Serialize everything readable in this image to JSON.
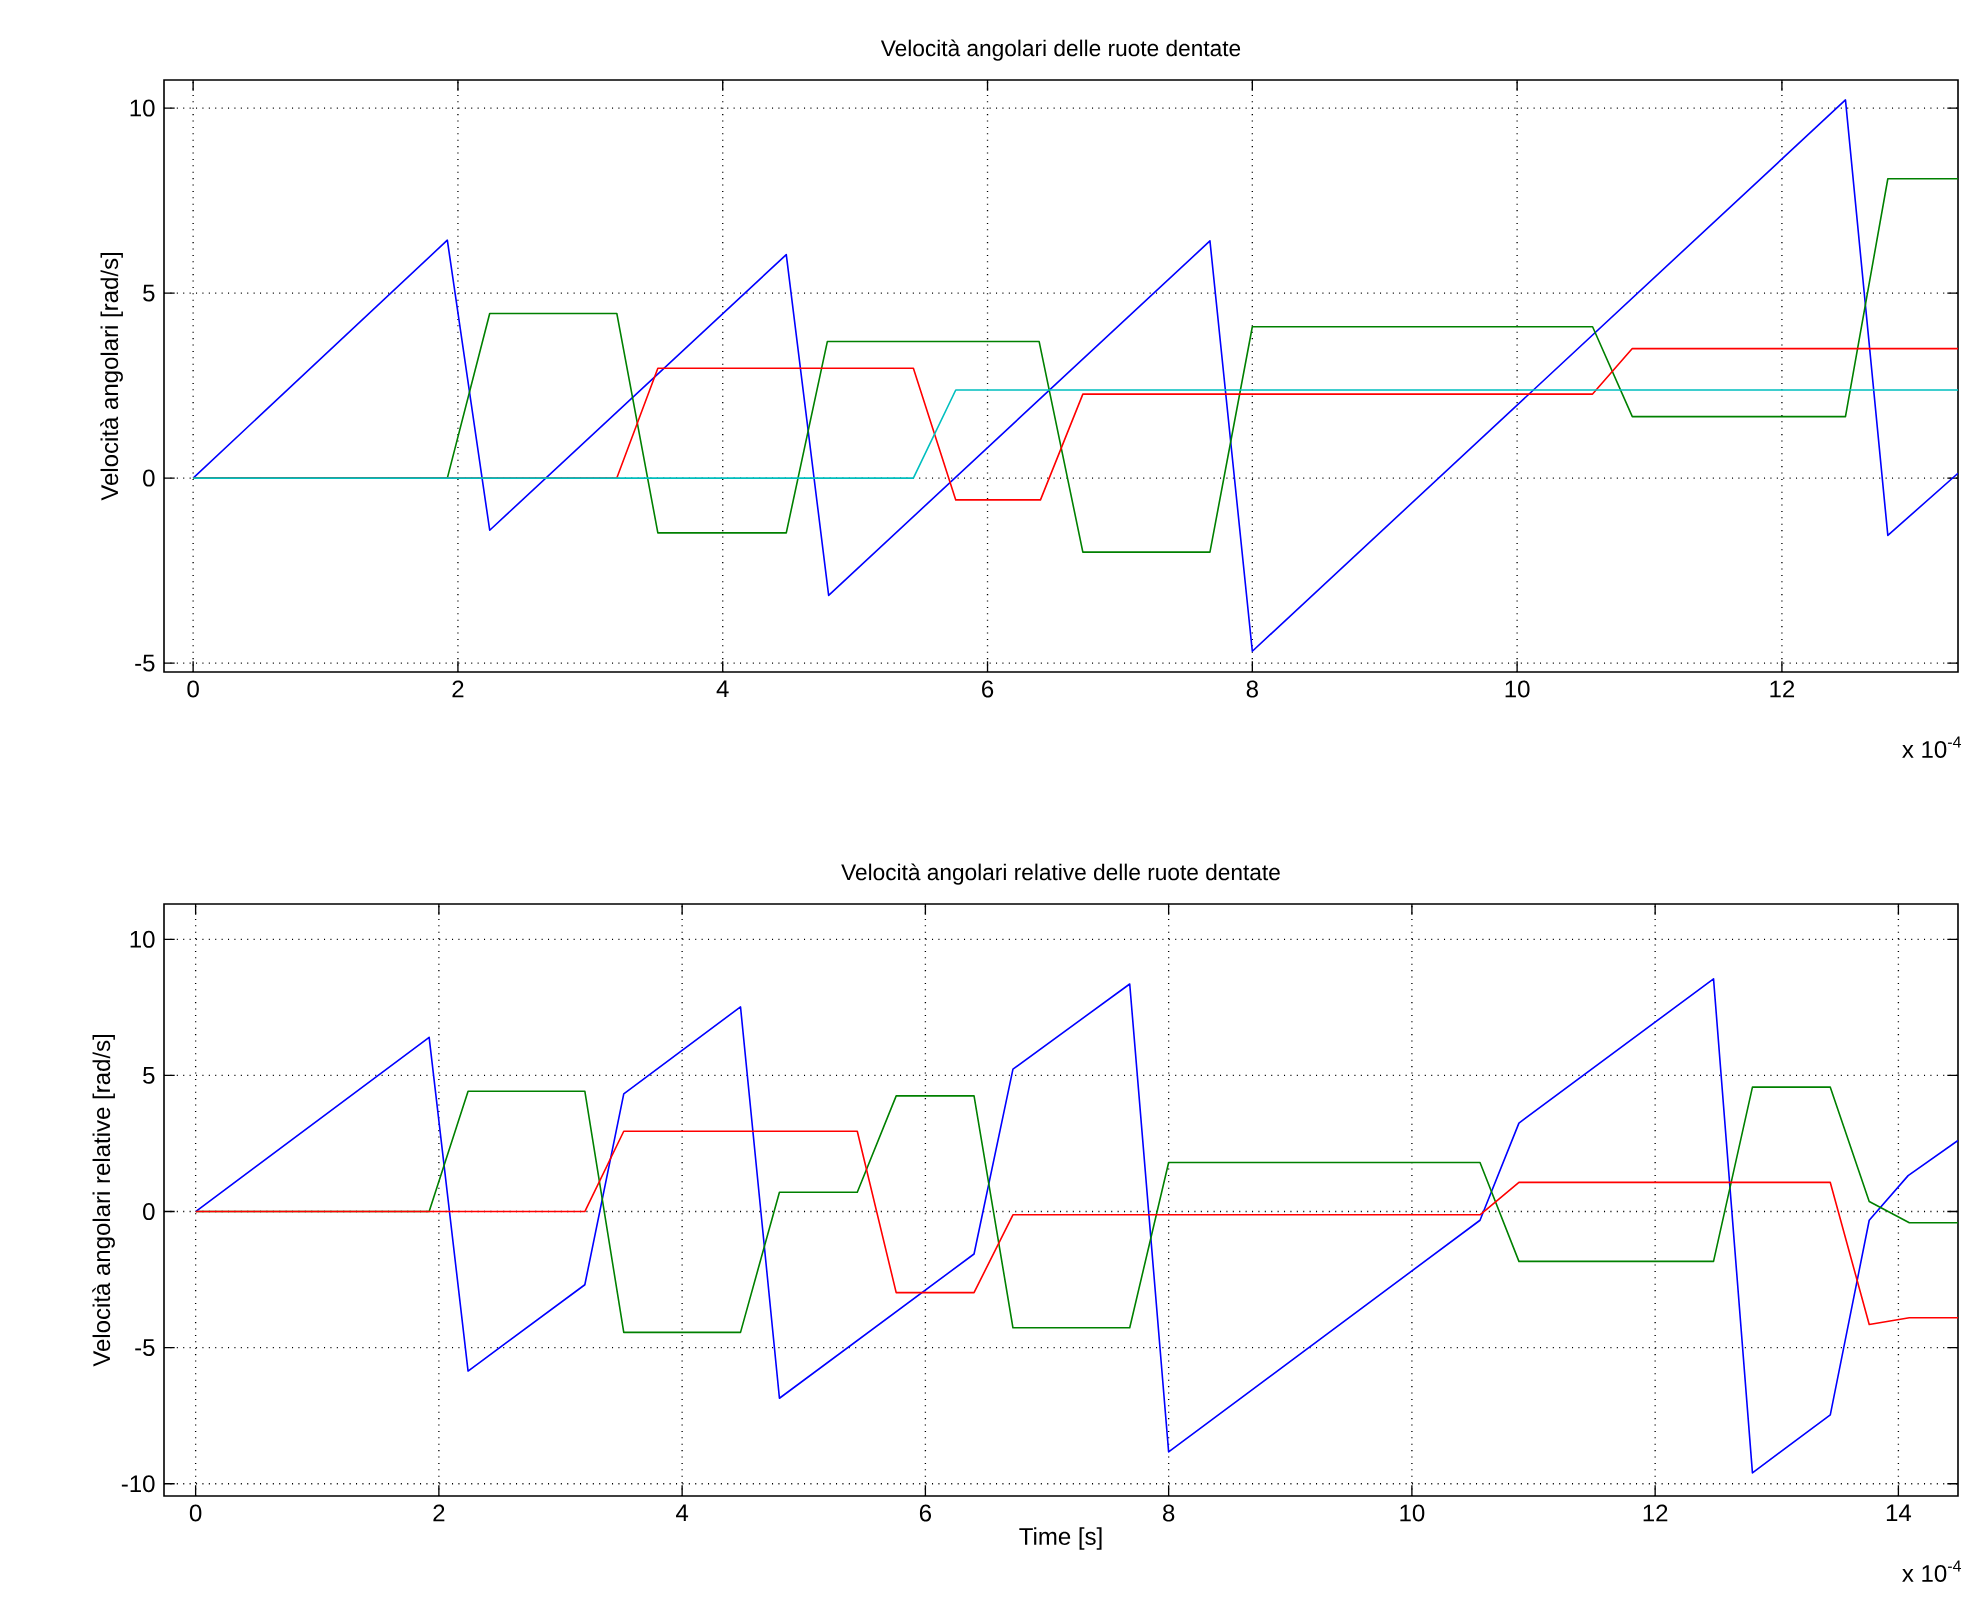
{
  "chart_data": [
    {
      "type": "line",
      "title": "Velocità angolari delle ruote dentate",
      "ylabel": "Velocità angolari [rad/s]",
      "xlim": [
        -0.22,
        13.33
      ],
      "ylim": [
        -5.24,
        10.76
      ],
      "xticks": [
        0,
        2,
        4,
        6,
        8,
        10,
        12
      ],
      "yticks": [
        -5,
        0,
        5,
        10
      ],
      "grid": true,
      "annotations": [
        "x 10$^{-4}$"
      ],
      "series": [
        {
          "color": "#0000ff",
          "x": [
            0,
            1.92,
            2.24,
            4.48,
            4.8,
            7.68,
            8.0,
            12.48,
            12.8,
            13.33
          ],
          "values": [
            0,
            6.43,
            -1.41,
            6.04,
            -3.17,
            6.41,
            -4.68,
            10.22,
            -1.55,
            0.13
          ]
        },
        {
          "color": "#008000",
          "x": [
            0,
            1.92,
            2.24,
            3.2,
            3.51,
            4.48,
            4.79,
            6.39,
            6.72,
            7.68,
            8.0,
            10.57,
            10.87,
            12.48,
            12.8,
            13.33
          ],
          "values": [
            0,
            0,
            4.45,
            4.45,
            -1.48,
            -1.48,
            3.69,
            3.69,
            -2.0,
            -2.0,
            4.09,
            4.09,
            1.66,
            1.66,
            8.09,
            8.09
          ]
        },
        {
          "color": "#ff0000",
          "x": [
            0,
            3.2,
            3.51,
            5.44,
            5.76,
            6.4,
            6.72,
            10.57,
            10.87,
            13.33
          ],
          "values": [
            0,
            0,
            2.97,
            2.97,
            -0.59,
            -0.59,
            2.27,
            2.27,
            3.5,
            3.5
          ]
        },
        {
          "color": "#00bfbf",
          "x": [
            0,
            5.44,
            5.76,
            13.33
          ],
          "values": [
            0,
            0,
            2.38,
            2.38
          ]
        }
      ]
    },
    {
      "type": "line",
      "title": "Velocità angolari relative delle ruote dentate",
      "xlabel": "Time [s]",
      "ylabel": "Velocità angolari relative [rad/s]",
      "xlim": [
        -0.26,
        14.49
      ],
      "ylim": [
        -10.45,
        11.3
      ],
      "xticks": [
        0,
        2,
        4,
        6,
        8,
        10,
        12,
        14
      ],
      "yticks": [
        -10,
        -5,
        0,
        5,
        10
      ],
      "grid": true,
      "annotations": [
        "x 10$^{-4}$"
      ],
      "series": [
        {
          "color": "#0000ff",
          "x": [
            0,
            1.92,
            2.24,
            3.2,
            3.52,
            4.48,
            4.8,
            6.4,
            6.72,
            7.68,
            8.0,
            10.56,
            10.88,
            12.48,
            12.8,
            13.44,
            13.76,
            14.08,
            14.49
          ],
          "values": [
            0,
            6.4,
            -5.86,
            -2.69,
            4.32,
            7.52,
            -6.86,
            -1.56,
            5.23,
            8.36,
            -8.83,
            -0.32,
            3.25,
            8.55,
            -9.6,
            -7.47,
            -0.32,
            1.32,
            2.61
          ]
        },
        {
          "color": "#008000",
          "x": [
            0,
            1.92,
            2.24,
            3.2,
            3.52,
            4.48,
            4.8,
            5.44,
            5.76,
            6.4,
            6.72,
            7.68,
            8.0,
            10.56,
            10.88,
            12.48,
            12.8,
            13.44,
            13.76,
            14.09,
            14.49
          ],
          "values": [
            0,
            0,
            4.42,
            4.42,
            -4.44,
            -4.44,
            0.71,
            0.71,
            4.25,
            4.25,
            -4.27,
            -4.27,
            1.8,
            1.8,
            -1.83,
            -1.83,
            4.57,
            4.57,
            0.37,
            -0.41,
            -0.41
          ]
        },
        {
          "color": "#ff0000",
          "x": [
            0,
            3.2,
            3.52,
            5.44,
            5.76,
            6.4,
            6.72,
            10.56,
            10.88,
            13.44,
            13.76,
            14.09,
            14.49
          ],
          "values": [
            0,
            0,
            2.95,
            2.95,
            -2.98,
            -2.98,
            -0.12,
            -0.12,
            1.07,
            1.07,
            -4.15,
            -3.9,
            -3.9
          ]
        }
      ]
    }
  ]
}
